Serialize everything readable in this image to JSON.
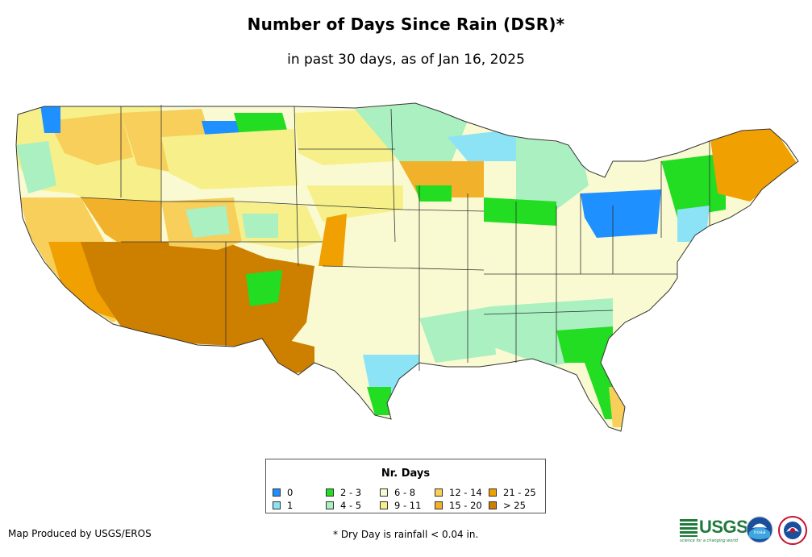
{
  "title": "Number of Days Since Rain (DSR)*",
  "subtitle": "in past 30 days, as of Jan 16, 2025",
  "legend": {
    "title": "Nr. Days",
    "items": [
      {
        "label": "0",
        "color": "#1e90ff"
      },
      {
        "label": "1",
        "color": "#8be3f5"
      },
      {
        "label": "2 - 3",
        "color": "#22dd22"
      },
      {
        "label": "4 - 5",
        "color": "#aaf0c0"
      },
      {
        "label": "6 - 8",
        "color": "#fafad2"
      },
      {
        "label": "9 - 11",
        "color": "#f7f08a"
      },
      {
        "label": "12 - 14",
        "color": "#f7cf5a"
      },
      {
        "label": "15 - 20",
        "color": "#f2b12a"
      },
      {
        "label": "21 - 25",
        "color": "#f0a000"
      },
      {
        "label": "> 25",
        "color": "#cd7f00"
      }
    ]
  },
  "footer": {
    "credit": "Map Produced by USGS/EROS",
    "footnote": "* Dry Day is rainfall < 0.04 in."
  },
  "logos": {
    "usgs": "USGS",
    "usgs_tagline": "science for a changing world",
    "noaa": "noaa",
    "nws": "national-weather-service-logo"
  }
}
